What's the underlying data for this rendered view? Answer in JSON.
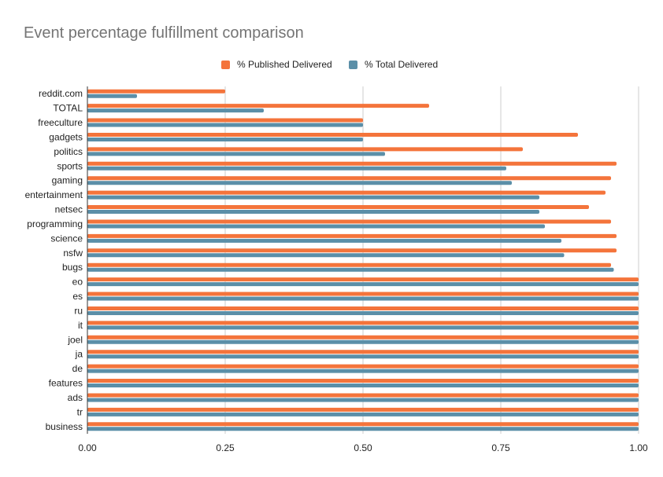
{
  "chart_data": {
    "type": "bar",
    "orientation": "horizontal",
    "title": "Event percentage fulfillment comparison",
    "xlabel": "",
    "ylabel": "",
    "xlim": [
      0,
      1
    ],
    "x_ticks": [
      "0.00",
      "0.25",
      "0.50",
      "0.75",
      "1.00"
    ],
    "grid": true,
    "legend_position": "top",
    "categories": [
      "reddit.com",
      "TOTAL",
      "freeculture",
      "gadgets",
      "politics",
      "sports",
      "gaming",
      "entertainment",
      "netsec",
      "programming",
      "science",
      "nsfw",
      "bugs",
      "eo",
      "es",
      "ru",
      "it",
      "joel",
      "ja",
      "de",
      "features",
      "ads",
      "tr",
      "business"
    ],
    "series": [
      {
        "name": "% Published Delivered",
        "color": "#f4743b",
        "values": [
          0.25,
          0.62,
          0.5,
          0.89,
          0.79,
          0.96,
          0.95,
          0.94,
          0.91,
          0.95,
          0.96,
          0.96,
          0.95,
          1.0,
          1.0,
          1.0,
          1.0,
          1.0,
          1.0,
          1.0,
          1.0,
          1.0,
          1.0,
          1.0
        ]
      },
      {
        "name": "% Total Delivered",
        "color": "#5b8fa8",
        "values": [
          0.09,
          0.32,
          0.5,
          0.5,
          0.54,
          0.76,
          0.77,
          0.82,
          0.82,
          0.83,
          0.86,
          0.865,
          0.955,
          1.0,
          1.0,
          1.0,
          1.0,
          1.0,
          1.0,
          1.0,
          1.0,
          1.0,
          1.0,
          1.0
        ]
      }
    ]
  }
}
